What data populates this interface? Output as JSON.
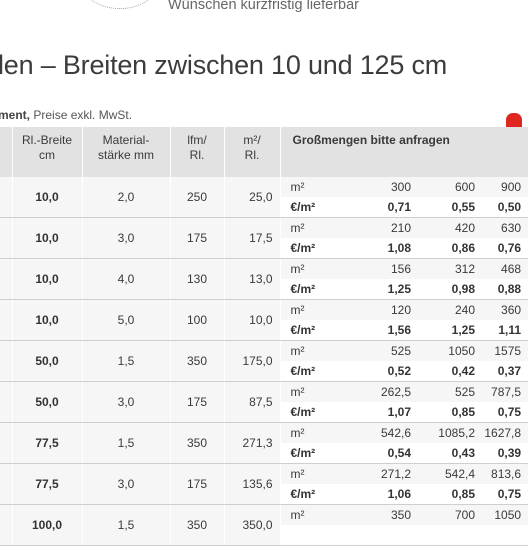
{
  "header": {
    "tagline": "Wünschen kurzfristig lieferbar",
    "title": "len – Breiten zwischen 10 und 125 cm",
    "subline_bold": "ment,",
    "subline_rest": " Preise exkl. MwSt."
  },
  "table": {
    "columns": {
      "width": [
        "Rl.-Breite",
        "cm"
      ],
      "thickness": [
        "Material-",
        "stärke mm"
      ],
      "lfm": [
        "lfm/",
        "Rl."
      ],
      "m2": [
        "m²/",
        "Rl."
      ],
      "bulk": "Großmengen bitte anfragen"
    },
    "rows": [
      {
        "width": "10,0",
        "thickness": "2,0",
        "lfm": "250",
        "m2": "25,0",
        "u1": "m²",
        "q1": "300",
        "q2": "600",
        "q3": "900",
        "u2": "€/m²",
        "p1": "0,71",
        "p2": "0,55",
        "p3": "0,50"
      },
      {
        "width": "10,0",
        "thickness": "3,0",
        "lfm": "175",
        "m2": "17,5",
        "u1": "m²",
        "q1": "210",
        "q2": "420",
        "q3": "630",
        "u2": "€/m²",
        "p1": "1,08",
        "p2": "0,86",
        "p3": "0,76"
      },
      {
        "width": "10,0",
        "thickness": "4,0",
        "lfm": "130",
        "m2": "13,0",
        "u1": "m²",
        "q1": "156",
        "q2": "312",
        "q3": "468",
        "u2": "€/m²",
        "p1": "1,25",
        "p2": "0,98",
        "p3": "0,88"
      },
      {
        "width": "10,0",
        "thickness": "5,0",
        "lfm": "100",
        "m2": "10,0",
        "u1": "m²",
        "q1": "120",
        "q2": "240",
        "q3": "360",
        "u2": "€/m²",
        "p1": "1,56",
        "p2": "1,25",
        "p3": "1,11"
      },
      {
        "width": "50,0",
        "thickness": "1,5",
        "lfm": "350",
        "m2": "175,0",
        "u1": "m²",
        "q1": "525",
        "q2": "1050",
        "q3": "1575",
        "u2": "€/m²",
        "p1": "0,52",
        "p2": "0,42",
        "p3": "0,37"
      },
      {
        "width": "50,0",
        "thickness": "3,0",
        "lfm": "175",
        "m2": "87,5",
        "u1": "m²",
        "q1": "262,5",
        "q2": "525",
        "q3": "787,5",
        "u2": "€/m²",
        "p1": "1,07",
        "p2": "0,85",
        "p3": "0,75"
      },
      {
        "width": "77,5",
        "thickness": "1,5",
        "lfm": "350",
        "m2": "271,3",
        "u1": "m²",
        "q1": "542,6",
        "q2": "1085,2",
        "q3": "1627,8",
        "u2": "€/m²",
        "p1": "0,54",
        "p2": "0,43",
        "p3": "0,39"
      },
      {
        "width": "77,5",
        "thickness": "3,0",
        "lfm": "175",
        "m2": "135,6",
        "u1": "m²",
        "q1": "271,2",
        "q2": "542,4",
        "q3": "813,6",
        "u2": "€/m²",
        "p1": "1,06",
        "p2": "0,85",
        "p3": "0,75"
      },
      {
        "width": "100,0",
        "thickness": "1,5",
        "lfm": "350",
        "m2": "350,0",
        "u1": "m²",
        "q1": "350",
        "q2": "700",
        "q3": "1050",
        "u2": "",
        "p1": "",
        "p2": "",
        "p3": ""
      }
    ]
  }
}
